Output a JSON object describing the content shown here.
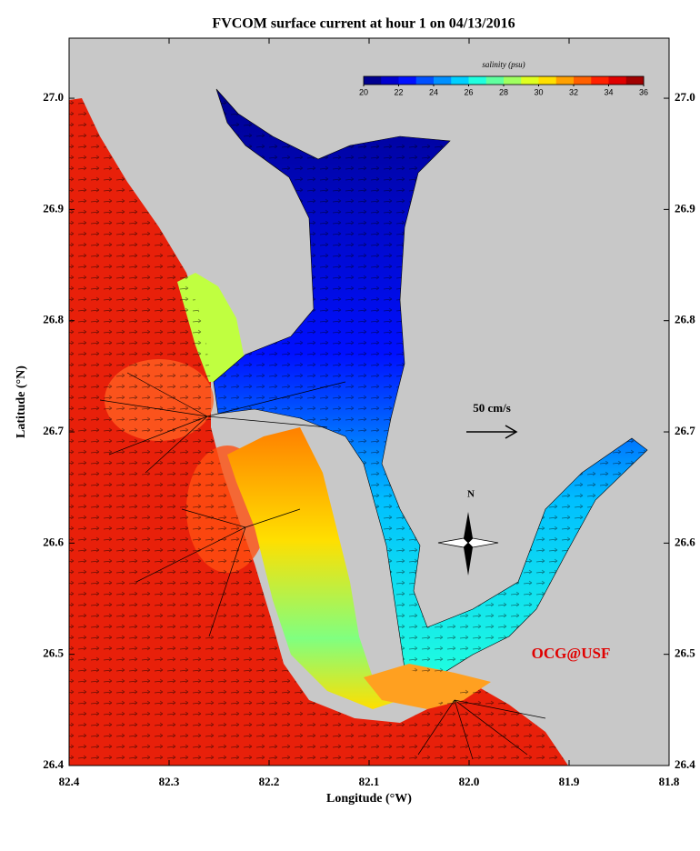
{
  "title": "FVCOM surface current at hour 1 on 04/13/2016",
  "map": {
    "xlabel": "Longitude (°W)",
    "ylabel": "Latitude (°N)",
    "xlim": [
      82.4,
      81.8
    ],
    "ylim": [
      26.4,
      27.054
    ],
    "xticks": [
      82.4,
      82.3,
      82.2,
      82.1,
      {
        "value": 82.0,
        "label": "82.0"
      },
      81.9,
      81.8
    ],
    "yticks": [
      26.4,
      26.5,
      26.6,
      26.7,
      26.8,
      26.9,
      {
        "value": 27.0,
        "label": "27.0"
      }
    ]
  },
  "colorbar": {
    "label": "salinity (psu)",
    "range": [
      20,
      36
    ],
    "ticks": [
      20,
      22,
      24,
      26,
      28,
      30,
      32,
      34,
      36
    ],
    "colors": [
      "#00008f",
      "#0000cf",
      "#0010ff",
      "#0050ff",
      "#0090ff",
      "#00d0ff",
      "#20ffdf",
      "#60ff9f",
      "#a0ff60",
      "#dfff20",
      "#ffdf00",
      "#ffa000",
      "#ff6000",
      "#ff2000",
      "#df0000",
      "#a00000"
    ]
  },
  "scale_arrow": {
    "label": "50 cm/s"
  },
  "compass": {
    "label": "N"
  },
  "credit": "OCG@USF"
}
